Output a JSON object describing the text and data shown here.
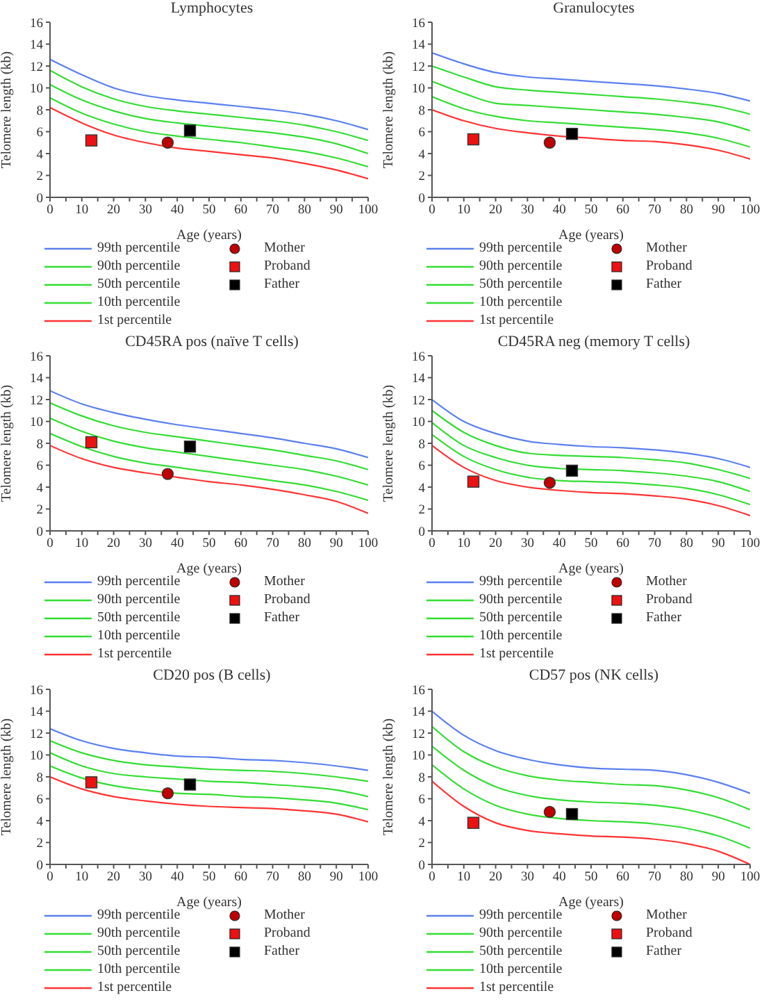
{
  "chart_data": [
    {
      "type": "line",
      "title": "Lymphocytes",
      "xlabel": "Age (years)",
      "ylabel": "Telomere length (kb)",
      "xlim": [
        0,
        100
      ],
      "ylim": [
        0,
        16
      ],
      "xticks": [
        0,
        {
          "value": 5,
          "label": null
        },
        10,
        {
          "value": 15,
          "label": null
        },
        20,
        {
          "value": 25,
          "label": null
        },
        30,
        {
          "value": 35,
          "label": null
        },
        40,
        {
          "value": 45,
          "label": null
        },
        50,
        {
          "value": 55,
          "label": null
        },
        60,
        {
          "value": 65,
          "label": null
        },
        70,
        {
          "value": 75,
          "label": null
        },
        80,
        {
          "value": 85,
          "label": null
        },
        90,
        {
          "value": 95,
          "label": null
        },
        100
      ],
      "yticks": [
        0,
        2,
        4,
        6,
        8,
        10,
        12,
        14,
        16
      ],
      "grid": false,
      "legend": "bottom",
      "marker": "none",
      "x": [
        0,
        10,
        20,
        30,
        40,
        50,
        60,
        70,
        80,
        90,
        100
      ],
      "series": [
        {
          "name": "99th percentile",
          "color": "#5b7ff0",
          "values": [
            12.6,
            11.2,
            10.0,
            9.3,
            8.9,
            8.6,
            8.3,
            8.0,
            7.6,
            7.0,
            6.2
          ]
        },
        {
          "name": "90th percentile",
          "color": "#33dd33",
          "values": [
            11.6,
            10.1,
            9.0,
            8.3,
            7.9,
            7.6,
            7.3,
            7.0,
            6.6,
            6.0,
            5.2
          ]
        },
        {
          "name": "50th percentile",
          "color": "#33dd33",
          "values": [
            10.3,
            8.9,
            7.9,
            7.2,
            6.8,
            6.5,
            6.2,
            5.9,
            5.5,
            4.9,
            4.0
          ]
        },
        {
          "name": "10th percentile",
          "color": "#33dd33",
          "values": [
            9.1,
            7.7,
            6.7,
            6.0,
            5.6,
            5.3,
            5.0,
            4.6,
            4.2,
            3.6,
            2.8
          ]
        },
        {
          "name": "1st percentile",
          "color": "#ff3333",
          "values": [
            8.2,
            6.8,
            5.7,
            5.0,
            4.5,
            4.2,
            3.9,
            3.6,
            3.1,
            2.5,
            1.7
          ]
        },
        {
          "name": "Mother",
          "type": "scatter",
          "marker": "circle",
          "color": "#c00000",
          "x": [
            37
          ],
          "values": [
            5.0
          ]
        },
        {
          "name": "Proband",
          "type": "scatter",
          "marker": "square",
          "color": "#ee1111",
          "x": [
            13
          ],
          "values": [
            5.2
          ]
        },
        {
          "name": "Father",
          "type": "scatter",
          "marker": "square",
          "color": "#000000",
          "x": [
            44
          ],
          "values": [
            6.1
          ]
        }
      ]
    },
    {
      "type": "line",
      "title": "Granulocytes",
      "xlabel": "Age (years)",
      "ylabel": "Telomere length (kb)",
      "xlim": [
        0,
        100
      ],
      "ylim": [
        0,
        16
      ],
      "xticks": [
        0,
        {
          "value": 5,
          "label": null
        },
        10,
        {
          "value": 15,
          "label": null
        },
        20,
        {
          "value": 25,
          "label": null
        },
        30,
        {
          "value": 35,
          "label": null
        },
        40,
        {
          "value": 45,
          "label": null
        },
        50,
        {
          "value": 55,
          "label": null
        },
        60,
        {
          "value": 65,
          "label": null
        },
        70,
        {
          "value": 75,
          "label": null
        },
        80,
        {
          "value": 85,
          "label": null
        },
        90,
        {
          "value": 95,
          "label": null
        },
        100
      ],
      "yticks": [
        0,
        2,
        4,
        6,
        8,
        10,
        12,
        14,
        16
      ],
      "grid": false,
      "legend": "bottom",
      "marker": "none",
      "x": [
        0,
        10,
        20,
        30,
        40,
        50,
        60,
        70,
        80,
        90,
        100
      ],
      "series": [
        {
          "name": "99th percentile",
          "color": "#5b7ff0",
          "values": [
            13.2,
            12.2,
            11.4,
            11.0,
            10.8,
            10.6,
            10.4,
            10.2,
            9.9,
            9.5,
            8.8
          ]
        },
        {
          "name": "90th percentile",
          "color": "#33dd33",
          "values": [
            12.0,
            11.0,
            10.1,
            9.8,
            9.6,
            9.4,
            9.2,
            9.0,
            8.7,
            8.3,
            7.6
          ]
        },
        {
          "name": "50th percentile",
          "color": "#33dd33",
          "values": [
            10.6,
            9.5,
            8.6,
            8.4,
            8.2,
            8.0,
            7.8,
            7.6,
            7.3,
            6.9,
            6.1
          ]
        },
        {
          "name": "10th percentile",
          "color": "#33dd33",
          "values": [
            9.2,
            8.1,
            7.4,
            7.0,
            6.8,
            6.6,
            6.4,
            6.2,
            5.9,
            5.4,
            4.6
          ]
        },
        {
          "name": "1st percentile",
          "color": "#ff3333",
          "values": [
            8.0,
            7.0,
            6.3,
            5.9,
            5.6,
            5.4,
            5.2,
            5.1,
            4.8,
            4.3,
            3.5
          ]
        },
        {
          "name": "Mother",
          "type": "scatter",
          "marker": "circle",
          "color": "#c00000",
          "x": [
            37
          ],
          "values": [
            5.0
          ]
        },
        {
          "name": "Proband",
          "type": "scatter",
          "marker": "square",
          "color": "#ee1111",
          "x": [
            13
          ],
          "values": [
            5.3
          ]
        },
        {
          "name": "Father",
          "type": "scatter",
          "marker": "square",
          "color": "#000000",
          "x": [
            44
          ],
          "values": [
            5.8
          ]
        }
      ]
    },
    {
      "type": "line",
      "title": "CD45RA pos (naïve T cells)",
      "xlabel": "Age (years)",
      "ylabel": "Telomere length (kb)",
      "xlim": [
        0,
        100
      ],
      "ylim": [
        0,
        16
      ],
      "xticks": [
        0,
        {
          "value": 5,
          "label": null
        },
        10,
        {
          "value": 15,
          "label": null
        },
        20,
        {
          "value": 25,
          "label": null
        },
        30,
        {
          "value": 35,
          "label": null
        },
        40,
        {
          "value": 45,
          "label": null
        },
        50,
        {
          "value": 55,
          "label": null
        },
        60,
        {
          "value": 65,
          "label": null
        },
        70,
        {
          "value": 75,
          "label": null
        },
        80,
        {
          "value": 85,
          "label": null
        },
        90,
        {
          "value": 95,
          "label": null
        },
        100
      ],
      "yticks": [
        0,
        2,
        4,
        6,
        8,
        10,
        12,
        14,
        16
      ],
      "grid": false,
      "legend": "bottom",
      "marker": "none",
      "x": [
        0,
        10,
        20,
        30,
        40,
        50,
        60,
        70,
        80,
        90,
        100
      ],
      "series": [
        {
          "name": "99th percentile",
          "color": "#5b7ff0",
          "values": [
            12.8,
            11.6,
            10.8,
            10.2,
            9.7,
            9.3,
            8.9,
            8.5,
            8.0,
            7.5,
            6.7
          ]
        },
        {
          "name": "90th percentile",
          "color": "#33dd33",
          "values": [
            11.7,
            10.5,
            9.6,
            9.0,
            8.6,
            8.2,
            7.8,
            7.4,
            6.9,
            6.4,
            5.6
          ]
        },
        {
          "name": "50th percentile",
          "color": "#33dd33",
          "values": [
            10.3,
            9.1,
            8.2,
            7.6,
            7.2,
            6.8,
            6.4,
            6.0,
            5.6,
            5.0,
            4.2
          ]
        },
        {
          "name": "10th percentile",
          "color": "#33dd33",
          "values": [
            8.9,
            7.7,
            6.8,
            6.2,
            5.8,
            5.4,
            5.0,
            4.6,
            4.2,
            3.6,
            2.8
          ]
        },
        {
          "name": "1st percentile",
          "color": "#ff3333",
          "values": [
            7.8,
            6.6,
            5.8,
            5.3,
            4.9,
            4.5,
            4.2,
            3.8,
            3.3,
            2.7,
            1.6
          ]
        },
        {
          "name": "Mother",
          "type": "scatter",
          "marker": "circle",
          "color": "#c00000",
          "x": [
            37
          ],
          "values": [
            5.2
          ]
        },
        {
          "name": "Proband",
          "type": "scatter",
          "marker": "square",
          "color": "#ee1111",
          "x": [
            13
          ],
          "values": [
            8.1
          ]
        },
        {
          "name": "Father",
          "type": "scatter",
          "marker": "square",
          "color": "#000000",
          "x": [
            44
          ],
          "values": [
            7.7
          ]
        }
      ]
    },
    {
      "type": "line",
      "title": "CD45RA neg (memory T cells)",
      "xlabel": "Age (years)",
      "ylabel": "Telomere length (kb)",
      "xlim": [
        0,
        100
      ],
      "ylim": [
        0,
        16
      ],
      "xticks": [
        0,
        {
          "value": 5,
          "label": null
        },
        10,
        {
          "value": 15,
          "label": null
        },
        20,
        {
          "value": 25,
          "label": null
        },
        30,
        {
          "value": 35,
          "label": null
        },
        40,
        {
          "value": 45,
          "label": null
        },
        50,
        {
          "value": 55,
          "label": null
        },
        60,
        {
          "value": 65,
          "label": null
        },
        70,
        {
          "value": 75,
          "label": null
        },
        80,
        {
          "value": 85,
          "label": null
        },
        90,
        {
          "value": 95,
          "label": null
        },
        100
      ],
      "yticks": [
        0,
        2,
        4,
        6,
        8,
        10,
        12,
        14,
        16
      ],
      "grid": false,
      "legend": "bottom",
      "marker": "none",
      "x": [
        0,
        10,
        20,
        30,
        40,
        50,
        60,
        70,
        80,
        90,
        100
      ],
      "series": [
        {
          "name": "99th percentile",
          "color": "#5b7ff0",
          "values": [
            12.0,
            10.0,
            8.9,
            8.2,
            7.9,
            7.7,
            7.6,
            7.4,
            7.1,
            6.6,
            5.8
          ]
        },
        {
          "name": "90th percentile",
          "color": "#33dd33",
          "values": [
            11.0,
            9.0,
            7.8,
            7.1,
            6.9,
            6.8,
            6.7,
            6.5,
            6.2,
            5.6,
            4.8
          ]
        },
        {
          "name": "50th percentile",
          "color": "#33dd33",
          "values": [
            9.9,
            7.8,
            6.7,
            6.0,
            5.7,
            5.6,
            5.5,
            5.3,
            5.0,
            4.5,
            3.6
          ]
        },
        {
          "name": "10th percentile",
          "color": "#33dd33",
          "values": [
            8.8,
            6.8,
            5.6,
            4.9,
            4.6,
            4.5,
            4.4,
            4.2,
            3.9,
            3.3,
            2.4
          ]
        },
        {
          "name": "1st percentile",
          "color": "#ff3333",
          "values": [
            7.8,
            5.8,
            4.6,
            4.0,
            3.7,
            3.5,
            3.4,
            3.2,
            2.9,
            2.3,
            1.4
          ]
        },
        {
          "name": "Mother",
          "type": "scatter",
          "marker": "circle",
          "color": "#c00000",
          "x": [
            37
          ],
          "values": [
            4.4
          ]
        },
        {
          "name": "Proband",
          "type": "scatter",
          "marker": "square",
          "color": "#ee1111",
          "x": [
            13
          ],
          "values": [
            4.5
          ]
        },
        {
          "name": "Father",
          "type": "scatter",
          "marker": "square",
          "color": "#000000",
          "x": [
            44
          ],
          "values": [
            5.5
          ]
        }
      ]
    },
    {
      "type": "line",
      "title": "CD20 pos (B cells)",
      "xlabel": "Age (years)",
      "ylabel": "Telomere length (kb)",
      "xlim": [
        0,
        100
      ],
      "ylim": [
        0,
        16
      ],
      "xticks": [
        0,
        {
          "value": 5,
          "label": null
        },
        10,
        {
          "value": 15,
          "label": null
        },
        20,
        {
          "value": 25,
          "label": null
        },
        30,
        {
          "value": 35,
          "label": null
        },
        40,
        {
          "value": 45,
          "label": null
        },
        50,
        {
          "value": 55,
          "label": null
        },
        60,
        {
          "value": 65,
          "label": null
        },
        70,
        {
          "value": 75,
          "label": null
        },
        80,
        {
          "value": 85,
          "label": null
        },
        90,
        {
          "value": 95,
          "label": null
        },
        100
      ],
      "yticks": [
        0,
        2,
        4,
        6,
        8,
        10,
        12,
        14,
        16
      ],
      "grid": false,
      "legend": "bottom",
      "marker": "none",
      "x": [
        0,
        10,
        20,
        30,
        40,
        50,
        60,
        70,
        80,
        90,
        100
      ],
      "series": [
        {
          "name": "99th percentile",
          "color": "#5b7ff0",
          "values": [
            12.4,
            11.3,
            10.6,
            10.2,
            9.9,
            9.8,
            9.6,
            9.5,
            9.3,
            9.0,
            8.6
          ]
        },
        {
          "name": "90th percentile",
          "color": "#33dd33",
          "values": [
            11.3,
            10.2,
            9.5,
            9.1,
            8.9,
            8.7,
            8.6,
            8.5,
            8.3,
            8.0,
            7.6
          ]
        },
        {
          "name": "50th percentile",
          "color": "#33dd33",
          "values": [
            10.2,
            9.0,
            8.3,
            8.0,
            7.8,
            7.6,
            7.5,
            7.3,
            7.1,
            6.8,
            6.2
          ]
        },
        {
          "name": "10th percentile",
          "color": "#33dd33",
          "values": [
            9.0,
            7.9,
            7.2,
            6.8,
            6.5,
            6.4,
            6.2,
            6.1,
            5.9,
            5.6,
            5.0
          ]
        },
        {
          "name": "1st percentile",
          "color": "#ff3333",
          "values": [
            8.0,
            6.9,
            6.2,
            5.8,
            5.5,
            5.3,
            5.2,
            5.1,
            4.9,
            4.6,
            3.9
          ]
        },
        {
          "name": "Mother",
          "type": "scatter",
          "marker": "circle",
          "color": "#c00000",
          "x": [
            37
          ],
          "values": [
            6.5
          ]
        },
        {
          "name": "Proband",
          "type": "scatter",
          "marker": "square",
          "color": "#ee1111",
          "x": [
            13
          ],
          "values": [
            7.5
          ]
        },
        {
          "name": "Father",
          "type": "scatter",
          "marker": "square",
          "color": "#000000",
          "x": [
            44
          ],
          "values": [
            7.3
          ]
        }
      ]
    },
    {
      "type": "line",
      "title": "CD57 pos (NK cells)",
      "xlabel": "Age (years)",
      "ylabel": "Telomere length (kb)",
      "xlim": [
        0,
        100
      ],
      "ylim": [
        0,
        16
      ],
      "xticks": [
        0,
        {
          "value": 5,
          "label": null
        },
        10,
        {
          "value": 15,
          "label": null
        },
        20,
        {
          "value": 25,
          "label": null
        },
        30,
        {
          "value": 35,
          "label": null
        },
        40,
        {
          "value": 45,
          "label": null
        },
        50,
        {
          "value": 55,
          "label": null
        },
        60,
        {
          "value": 65,
          "label": null
        },
        70,
        {
          "value": 75,
          "label": null
        },
        80,
        {
          "value": 85,
          "label": null
        },
        90,
        {
          "value": 95,
          "label": null
        },
        100
      ],
      "yticks": [
        0,
        2,
        4,
        6,
        8,
        10,
        12,
        14,
        16
      ],
      "grid": false,
      "legend": "bottom",
      "marker": "none",
      "x": [
        0,
        10,
        20,
        30,
        40,
        50,
        60,
        70,
        80,
        90,
        100
      ],
      "series": [
        {
          "name": "99th percentile",
          "color": "#5b7ff0",
          "values": [
            14.0,
            11.8,
            10.4,
            9.6,
            9.1,
            8.8,
            8.7,
            8.6,
            8.2,
            7.5,
            6.5
          ]
        },
        {
          "name": "90th percentile",
          "color": "#33dd33",
          "values": [
            12.6,
            10.3,
            8.9,
            8.1,
            7.7,
            7.5,
            7.3,
            7.2,
            6.8,
            6.1,
            5.0
          ]
        },
        {
          "name": "50th percentile",
          "color": "#33dd33",
          "values": [
            10.8,
            8.6,
            7.1,
            6.3,
            5.9,
            5.7,
            5.6,
            5.4,
            5.0,
            4.3,
            3.3
          ]
        },
        {
          "name": "10th percentile",
          "color": "#33dd33",
          "values": [
            9.1,
            6.9,
            5.4,
            4.6,
            4.2,
            4.0,
            3.9,
            3.7,
            3.3,
            2.6,
            1.5
          ]
        },
        {
          "name": "1st percentile",
          "color": "#ff3333",
          "values": [
            7.6,
            5.3,
            3.8,
            3.1,
            2.8,
            2.6,
            2.5,
            2.3,
            1.9,
            1.2,
            0.0
          ]
        },
        {
          "name": "Mother",
          "type": "scatter",
          "marker": "circle",
          "color": "#c00000",
          "x": [
            37
          ],
          "values": [
            4.8
          ]
        },
        {
          "name": "Proband",
          "type": "scatter",
          "marker": "square",
          "color": "#ee1111",
          "x": [
            13
          ],
          "values": [
            3.8
          ]
        },
        {
          "name": "Father",
          "type": "scatter",
          "marker": "square",
          "color": "#000000",
          "x": [
            44
          ],
          "values": [
            4.6
          ]
        }
      ]
    }
  ]
}
